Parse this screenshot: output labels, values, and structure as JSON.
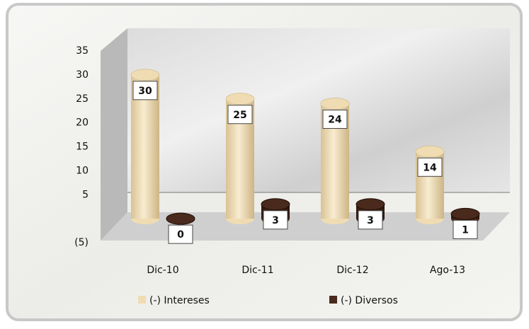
{
  "chart_data": {
    "type": "bar",
    "categories": [
      "Dic-10",
      "Dic-11",
      "Dic-12",
      "Ago-13"
    ],
    "series": [
      {
        "name": "(-) Intereses",
        "color": "#efdcb2",
        "values": [
          30,
          25,
          24,
          14
        ]
      },
      {
        "name": "(-) Diversos",
        "color": "#4a2a1c",
        "values": [
          0,
          3,
          3,
          1
        ]
      }
    ],
    "ylim": [
      -5,
      35
    ],
    "yticks": [
      {
        "value": -5,
        "label": "(5)"
      },
      5,
      10,
      15,
      20,
      25,
      30,
      35
    ],
    "grid": false,
    "legend": "bottom"
  }
}
